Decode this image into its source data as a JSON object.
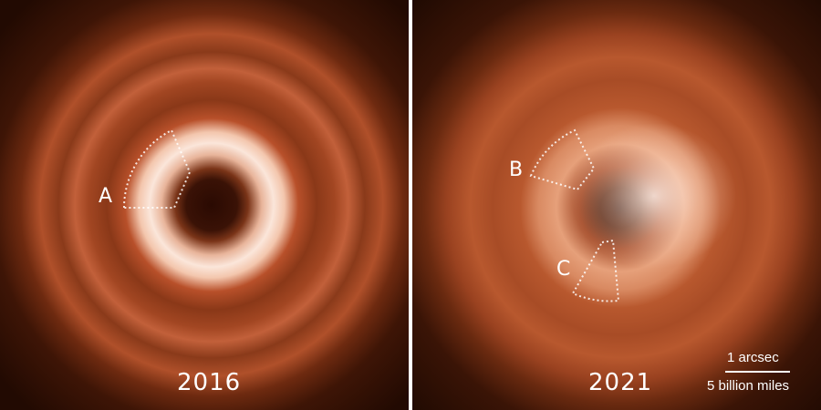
{
  "panels": [
    {
      "year": "2016",
      "regions": [
        {
          "label": "A"
        }
      ]
    },
    {
      "year": "2021",
      "regions": [
        {
          "label": "B"
        },
        {
          "label": "C"
        }
      ]
    }
  ],
  "scale_bar": {
    "angular": "1 arcsec",
    "physical": "5 billion miles"
  },
  "colors": {
    "disk": "#c2603a",
    "bright_ring": "#fbe6da",
    "background": "#220a02",
    "annotation": "#ffffff"
  }
}
